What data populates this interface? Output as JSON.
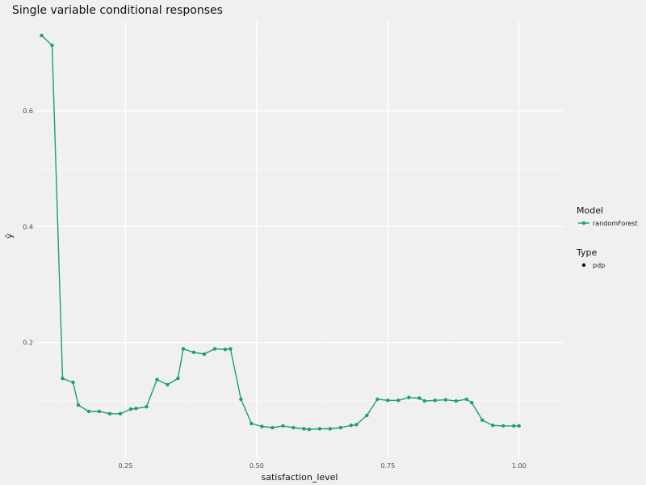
{
  "chart_data": {
    "type": "line",
    "title": "Single variable conditional responses",
    "xlabel": "satisfaction_level",
    "ylabel": "ŷ",
    "xlim": [
      0.08,
      1.085
    ],
    "ylim": [
      0.0,
      0.755
    ],
    "x_ticks": [
      0.25,
      0.5,
      0.75,
      1.0
    ],
    "x_tick_labels": [
      "0.25",
      "0.50",
      "0.75",
      "1.00"
    ],
    "y_ticks": [
      0.2,
      0.4,
      0.6
    ],
    "y_tick_labels": [
      "0.2",
      "0.4",
      "0.6"
    ],
    "grid": true,
    "legend_placement": "right",
    "series": [
      {
        "name": "randomForest",
        "color": "#1b9e77",
        "x": [
          0.09,
          0.11,
          0.13,
          0.15,
          0.16,
          0.18,
          0.2,
          0.22,
          0.24,
          0.26,
          0.27,
          0.29,
          0.31,
          0.33,
          0.35,
          0.36,
          0.38,
          0.4,
          0.42,
          0.44,
          0.45,
          0.47,
          0.49,
          0.51,
          0.53,
          0.55,
          0.57,
          0.59,
          0.6,
          0.62,
          0.64,
          0.66,
          0.68,
          0.69,
          0.71,
          0.73,
          0.75,
          0.77,
          0.79,
          0.81,
          0.82,
          0.84,
          0.86,
          0.88,
          0.9,
          0.91,
          0.93,
          0.95,
          0.97,
          0.99,
          1.0
        ],
        "values": [
          0.73,
          0.713,
          0.138,
          0.131,
          0.092,
          0.081,
          0.081,
          0.077,
          0.077,
          0.085,
          0.086,
          0.089,
          0.136,
          0.127,
          0.138,
          0.189,
          0.183,
          0.18,
          0.189,
          0.188,
          0.189,
          0.102,
          0.06,
          0.055,
          0.053,
          0.056,
          0.053,
          0.051,
          0.05,
          0.051,
          0.051,
          0.053,
          0.057,
          0.058,
          0.074,
          0.102,
          0.1,
          0.1,
          0.105,
          0.104,
          0.099,
          0.1,
          0.101,
          0.099,
          0.102,
          0.096,
          0.066,
          0.057,
          0.056,
          0.056,
          0.056
        ]
      }
    ],
    "legend": {
      "model_title": "Model",
      "model_label": "randomForest",
      "type_title": "Type",
      "type_label": "pdp"
    }
  }
}
